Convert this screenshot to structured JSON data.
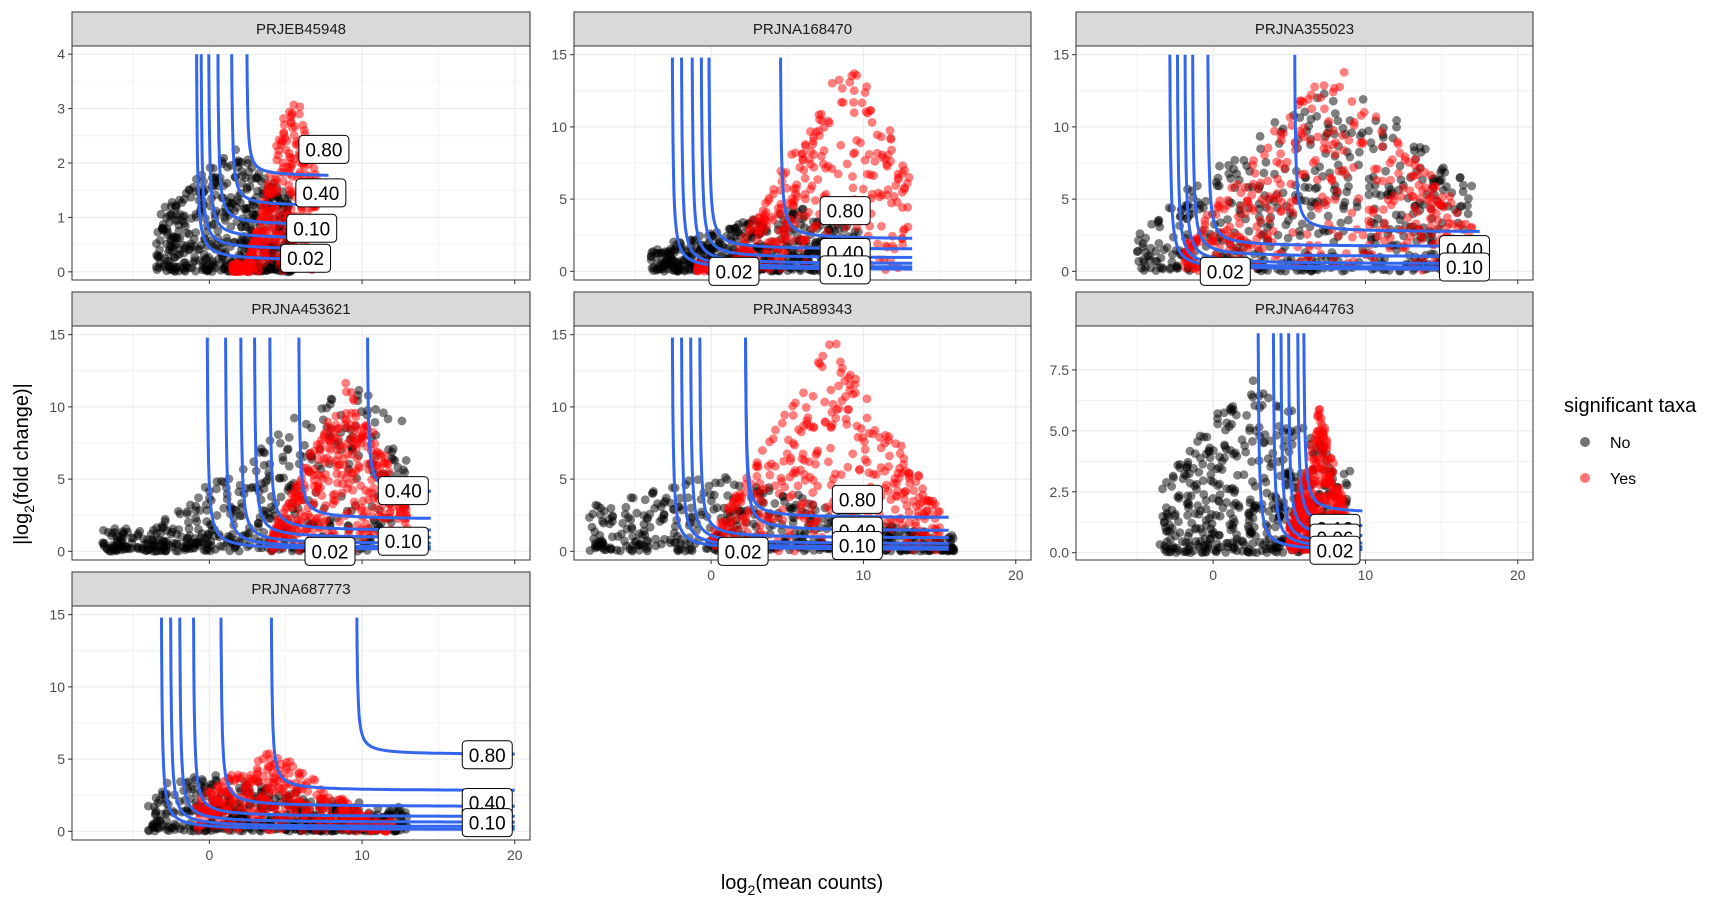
{
  "chart_data": {
    "type": "scatter",
    "xlabel": {
      "prefix": "log",
      "sub": "2",
      "suffix": "(mean counts)"
    },
    "ylabel": {
      "prefix": "|log",
      "sub": "2",
      "suffix": "(fold change)|"
    },
    "legend": {
      "title": "significant taxa",
      "placement": "right",
      "entries": [
        {
          "label": "No",
          "color": "#000000"
        },
        {
          "label": "Yes",
          "color": "#ff0000"
        }
      ]
    },
    "colors": {
      "curve": "#3366ee",
      "no": "#000000",
      "yes": "#ff0000",
      "strip_bg": "#d9d9d9",
      "grid": "#ebebeb"
    },
    "shared_x": {
      "xlim": [
        -9,
        21
      ],
      "xticks": [
        0,
        10,
        20
      ],
      "xticklabels": [
        "0",
        "10",
        "20"
      ]
    },
    "panels": [
      {
        "name": "PRJEB45948",
        "ylim": [
          -0.15,
          4.15
        ],
        "yticks": [
          0,
          1,
          2,
          3,
          4
        ],
        "yticklabels": [
          "0",
          "1",
          "2",
          "3",
          "4"
        ],
        "cloud": {
          "no": {
            "x": [
              -3.5,
              5.5
            ],
            "yTop": 2.3,
            "yEdge": 1.0,
            "apex": 1.5
          },
          "yes": {
            "x": [
              1.5,
              7
            ],
            "yLow": 0.1,
            "yHigh": 3.5,
            "apex": 5.5
          }
        },
        "curves": [
          {
            "asym": 0.2,
            "vx": -0.9,
            "yTop": 4.0,
            "xEnd": 7.8
          },
          {
            "asym": 0.4,
            "vx": -0.6,
            "yTop": 4.0,
            "xEnd": 7.8
          },
          {
            "asym": 0.6,
            "vx": -0.1,
            "yTop": 4.0,
            "xEnd": 7.8
          },
          {
            "asym": 0.85,
            "vx": 0.5,
            "yTop": 4.0,
            "xEnd": 7.8
          },
          {
            "asym": 1.2,
            "vx": 1.4,
            "yTop": 4.0,
            "xEnd": 7.8
          },
          {
            "asym": 1.75,
            "vx": 2.4,
            "yTop": 4.0,
            "xEnd": 7.8
          }
        ],
        "labels": [
          {
            "text": "0.80",
            "x": 7.5,
            "y": 2.25
          },
          {
            "text": "0.40",
            "x": 7.3,
            "y": 1.45
          },
          {
            "text": "0.10",
            "x": 6.7,
            "y": 0.8
          },
          {
            "text": "0.02",
            "x": 6.3,
            "y": 0.25
          }
        ]
      },
      {
        "name": "PRJNA168470",
        "ylim": [
          -0.6,
          15.6
        ],
        "yticks": [
          0,
          5,
          10,
          15
        ],
        "yticklabels": [
          "0",
          "5",
          "10",
          "15"
        ],
        "cloud": {
          "no": {
            "x": [
              -4,
              10
            ],
            "yTop": 4.5,
            "yEdge": 1.5,
            "apex": 5
          },
          "yes": {
            "x": [
              -1,
              13
            ],
            "yLow": 0.5,
            "yHigh": 15,
            "apex": 9
          }
        },
        "curves": [
          {
            "asym": 0.1,
            "vx": -2.6,
            "yTop": 14.8,
            "xEnd": 13.2
          },
          {
            "asym": 0.25,
            "vx": -2.0,
            "yTop": 14.8,
            "xEnd": 13.2
          },
          {
            "asym": 0.5,
            "vx": -1.3,
            "yTop": 14.8,
            "xEnd": 13.2
          },
          {
            "asym": 0.9,
            "vx": -0.7,
            "yTop": 14.8,
            "xEnd": 13.2
          },
          {
            "asym": 1.5,
            "vx": -0.2,
            "yTop": 14.8,
            "xEnd": 13.2
          },
          {
            "asym": 2.2,
            "vx": 4.5,
            "yTop": 14.8,
            "xEnd": 13.2
          }
        ],
        "labels": [
          {
            "text": "0.80",
            "x": 8.8,
            "y": 4.2
          },
          {
            "text": "0.40",
            "x": 8.8,
            "y": 1.3
          },
          {
            "text": "0.10",
            "x": 8.8,
            "y": 0.1
          },
          {
            "text": "0.02",
            "x": 1.5,
            "y": 0.0
          }
        ]
      },
      {
        "name": "PRJNA355023",
        "ylim": [
          -0.6,
          15.6
        ],
        "yticks": [
          0,
          5,
          10,
          15
        ],
        "yticklabels": [
          "0",
          "5",
          "10",
          "15"
        ],
        "cloud": {
          "no": {
            "x": [
              -5,
              17
            ],
            "yTop": 14,
            "yEdge": 2,
            "apex": 8
          },
          "yes": {
            "x": [
              -2,
              17
            ],
            "yLow": 1,
            "yHigh": 15,
            "apex": 8
          }
        },
        "curves": [
          {
            "asym": 0.1,
            "vx": -2.9,
            "yTop": 15.0,
            "xEnd": 17.5
          },
          {
            "asym": 0.25,
            "vx": -2.4,
            "yTop": 15.0,
            "xEnd": 17.5
          },
          {
            "asym": 0.5,
            "vx": -1.9,
            "yTop": 15.0,
            "xEnd": 17.5
          },
          {
            "asym": 1.0,
            "vx": -1.4,
            "yTop": 15.0,
            "xEnd": 17.5
          },
          {
            "asym": 1.7,
            "vx": -0.4,
            "yTop": 15.0,
            "xEnd": 17.5
          },
          {
            "asym": 2.7,
            "vx": 5.3,
            "yTop": 15.0,
            "xEnd": 17.5
          }
        ],
        "labels": [
          {
            "text": "0.40",
            "x": 16.5,
            "y": 1.5
          },
          {
            "text": "0.10",
            "x": 16.5,
            "y": 0.3
          },
          {
            "text": "0.02",
            "x": 0.8,
            "y": 0.0
          }
        ]
      },
      {
        "name": "PRJNA453621",
        "ylim": [
          -0.6,
          15.6
        ],
        "yticks": [
          0,
          5,
          10,
          15
        ],
        "yticklabels": [
          "0",
          "5",
          "10",
          "15"
        ],
        "cloud": {
          "no": {
            "x": [
              -7,
              13
            ],
            "yTop": 12,
            "yEdge": 1.5,
            "apex": 9
          },
          "yes": {
            "x": [
              4,
              13
            ],
            "yLow": 1,
            "yHigh": 12,
            "apex": 9
          }
        },
        "curves": [
          {
            "asym": 0.1,
            "vx": -0.2,
            "yTop": 14.8,
            "xEnd": 14.5
          },
          {
            "asym": 0.25,
            "vx": 1.0,
            "yTop": 14.8,
            "xEnd": 14.5
          },
          {
            "asym": 0.5,
            "vx": 2.0,
            "yTop": 14.8,
            "xEnd": 14.5
          },
          {
            "asym": 0.9,
            "vx": 2.9,
            "yTop": 14.8,
            "xEnd": 14.5
          },
          {
            "asym": 1.4,
            "vx": 3.9,
            "yTop": 14.8,
            "xEnd": 14.5
          },
          {
            "asym": 2.2,
            "vx": 5.8,
            "yTop": 14.8,
            "xEnd": 14.5
          },
          {
            "asym": 4.0,
            "vx": 10.3,
            "yTop": 14.8,
            "xEnd": 14.5
          }
        ],
        "labels": [
          {
            "text": "0.40",
            "x": 12.7,
            "y": 4.2
          },
          {
            "text": "0.10",
            "x": 12.7,
            "y": 0.7
          },
          {
            "text": "0.02",
            "x": 7.9,
            "y": 0.0
          }
        ]
      },
      {
        "name": "PRJNA589343",
        "ylim": [
          -0.6,
          15.6
        ],
        "yticks": [
          0,
          5,
          10,
          15
        ],
        "yticklabels": [
          "0",
          "5",
          "10",
          "15"
        ],
        "cloud": {
          "no": {
            "x": [
              -8,
              16
            ],
            "yTop": 5.5,
            "yEdge": 1.0,
            "apex": 0
          },
          "yes": {
            "x": [
              0,
              15
            ],
            "yLow": 0.5,
            "yHigh": 15,
            "apex": 8
          }
        },
        "curves": [
          {
            "asym": 0.1,
            "vx": -2.6,
            "yTop": 14.8,
            "xEnd": 15.6
          },
          {
            "asym": 0.25,
            "vx": -2.0,
            "yTop": 14.8,
            "xEnd": 15.6
          },
          {
            "asym": 0.5,
            "vx": -1.4,
            "yTop": 14.8,
            "xEnd": 15.6
          },
          {
            "asym": 0.9,
            "vx": -0.8,
            "yTop": 14.8,
            "xEnd": 15.6
          },
          {
            "asym": 1.4,
            "vx": 2.2,
            "yTop": 14.8,
            "xEnd": 15.6
          },
          {
            "asym": 2.3,
            "vx": 2.2,
            "yTop": 14.8,
            "xEnd": 15.6
          }
        ],
        "labels": [
          {
            "text": "0.80",
            "x": 9.6,
            "y": 3.6
          },
          {
            "text": "0.40",
            "x": 9.6,
            "y": 1.4
          },
          {
            "text": "0.10",
            "x": 9.6,
            "y": 0.4
          },
          {
            "text": "0.02",
            "x": 2.1,
            "y": 0.0
          }
        ]
      },
      {
        "name": "PRJNA644763",
        "ylim": [
          -0.3,
          9.3
        ],
        "yticks": [
          0,
          2.5,
          5,
          7.5
        ],
        "yticklabels": [
          "0.0",
          "2.5",
          "5.0",
          "7.5"
        ],
        "cloud": {
          "no": {
            "x": [
              -3.5,
              9
            ],
            "yTop": 7.5,
            "yEdge": 2.0,
            "apex": 3
          },
          "yes": {
            "x": [
              5,
              9
            ],
            "yLow": 0.5,
            "yHigh": 6,
            "apex": 7
          }
        },
        "curves": [
          {
            "asym": 0.05,
            "vx": 2.9,
            "yTop": 9.0,
            "xEnd": 9.8
          },
          {
            "asym": 0.15,
            "vx": 3.9,
            "yTop": 9.0,
            "xEnd": 9.8
          },
          {
            "asym": 0.3,
            "vx": 4.4,
            "yTop": 9.0,
            "xEnd": 9.8
          },
          {
            "asym": 0.6,
            "vx": 4.9,
            "yTop": 9.0,
            "xEnd": 9.8
          },
          {
            "asym": 1.0,
            "vx": 5.5,
            "yTop": 9.0,
            "xEnd": 9.8
          },
          {
            "asym": 1.6,
            "vx": 5.9,
            "yTop": 9.0,
            "xEnd": 9.8
          }
        ],
        "labels": [
          {
            "text": "0.10",
            "x": 8.0,
            "y": 1.0
          },
          {
            "text": "0.06",
            "x": 8.0,
            "y": 0.6
          },
          {
            "text": "0.02",
            "x": 8.0,
            "y": 0.1
          }
        ]
      },
      {
        "name": "PRJNA687773",
        "ylim": [
          -0.6,
          15.6
        ],
        "yticks": [
          0,
          5,
          10,
          15
        ],
        "yticklabels": [
          "0",
          "5",
          "10",
          "15"
        ],
        "cloud": {
          "no": {
            "x": [
              -4,
              13
            ],
            "yTop": 4.0,
            "yEdge": 1.5,
            "apex": 0
          },
          "yes": {
            "x": [
              -1,
              12
            ],
            "yLow": 0.5,
            "yHigh": 5.5,
            "apex": 4
          }
        },
        "curves": [
          {
            "asym": 0.1,
            "vx": -3.2,
            "yTop": 14.8,
            "xEnd": 20.0
          },
          {
            "asym": 0.3,
            "vx": -2.6,
            "yTop": 14.8,
            "xEnd": 20.0
          },
          {
            "asym": 0.6,
            "vx": -2.0,
            "yTop": 14.8,
            "xEnd": 20.0
          },
          {
            "asym": 1.0,
            "vx": -1.1,
            "yTop": 14.8,
            "xEnd": 20.0
          },
          {
            "asym": 1.7,
            "vx": 0.7,
            "yTop": 14.8,
            "xEnd": 20.0
          },
          {
            "asym": 2.8,
            "vx": 4.0,
            "yTop": 14.8,
            "xEnd": 20.0
          },
          {
            "asym": 5.3,
            "vx": 9.6,
            "yTop": 14.8,
            "xEnd": 20.0
          }
        ],
        "labels": [
          {
            "text": "0.80",
            "x": 18.2,
            "y": 5.3
          },
          {
            "text": "0.40",
            "x": 18.2,
            "y": 2.0
          },
          {
            "text": "0.10",
            "x": 18.2,
            "y": 0.6
          }
        ]
      }
    ]
  }
}
